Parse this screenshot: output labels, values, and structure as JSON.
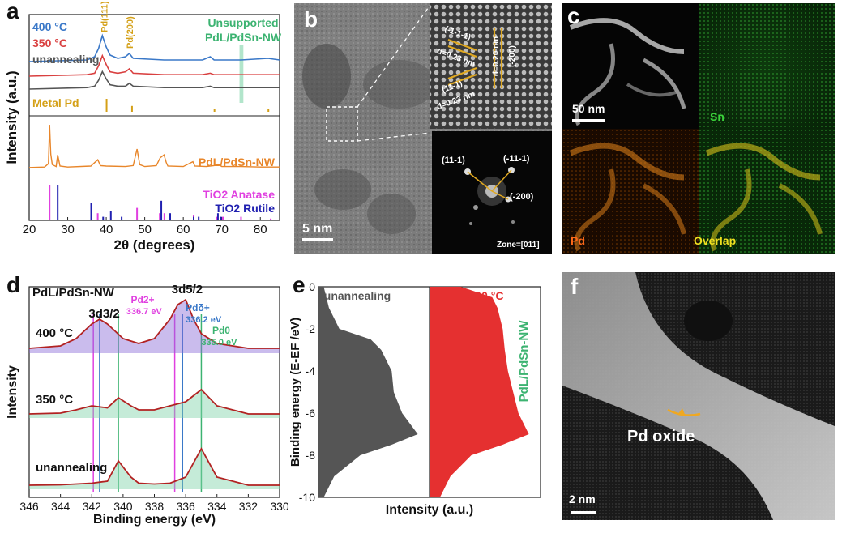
{
  "panels": {
    "a": {
      "label": "a"
    },
    "b": {
      "label": "b",
      "scale": "5 nm",
      "lattice": [
        "(-1-1-1)",
        "d=0.23 nm",
        "(11-1)",
        "d=0.23 nm",
        "d=0.20 nm",
        "(-200)"
      ],
      "fft": {
        "spots": [
          "(11-1)",
          "(-11-1)",
          "(-200)"
        ],
        "zone": "Zone=[011]"
      }
    },
    "c": {
      "label": "c",
      "scale": "50 nm",
      "maps": [
        "Sn",
        "Pd",
        "Overlap"
      ]
    },
    "d": {
      "label": "d"
    },
    "e": {
      "label": "e"
    },
    "f": {
      "label": "f",
      "annotation": "Pd oxide",
      "scale": "2 nm"
    }
  },
  "colors": {
    "gold": "#d4a017",
    "green": "#3cb371",
    "red": "#d94040",
    "blue": "#3a78c8",
    "magenta": "#e040e0",
    "navy": "#2020b0",
    "orange": "#e8862a",
    "gray": "#555555"
  },
  "chart_data": [
    {
      "type": "line",
      "panel": "a",
      "xlabel": "2θ (degrees)",
      "ylabel": "Intensity (a.u.)",
      "xlim": [
        20,
        85
      ],
      "xticks": [
        20,
        30,
        40,
        50,
        60,
        70,
        80
      ],
      "annotations": {
        "pd111": "Pd(111)",
        "pd200": "Pd(200)",
        "unsupported_line1": "Unsupported",
        "unsupported_line2": "PdL/PdSn-NW"
      },
      "series": [
        {
          "name": "400 °C",
          "color": "#3a78c8",
          "x": [
            20,
            35,
            37,
            38,
            39,
            40,
            41,
            43,
            45,
            46,
            47,
            55,
            65,
            67,
            68,
            75,
            82,
            85
          ],
          "y": [
            0,
            1,
            3,
            8,
            16,
            9,
            4,
            2,
            3,
            5,
            2,
            1,
            1,
            3,
            1,
            1,
            2,
            1
          ]
        },
        {
          "name": "350 °C",
          "color": "#d94040",
          "x": [
            20,
            35,
            37,
            38,
            39,
            40,
            41,
            43,
            45,
            46,
            47,
            55,
            65,
            67,
            68,
            75,
            82,
            85
          ],
          "y": [
            0,
            1,
            2,
            7,
            14,
            8,
            3,
            2,
            3,
            5,
            2,
            1,
            1,
            2,
            1,
            1,
            1,
            1
          ]
        },
        {
          "name": "unannealing",
          "color": "#555555",
          "x": [
            20,
            35,
            37,
            38,
            39,
            40,
            41,
            43,
            45,
            46,
            47,
            55,
            65,
            67,
            68,
            75,
            82,
            85
          ],
          "y": [
            0,
            1,
            2,
            6,
            12,
            7,
            3,
            2,
            2,
            4,
            2,
            1,
            1,
            2,
            1,
            1,
            1,
            1
          ]
        },
        {
          "name": "Metal Pd",
          "color": "#d4a017",
          "sticks": [
            40.1,
            46.7,
            68.1,
            82.1
          ],
          "heights": [
            1.0,
            0.45,
            0.25,
            0.25
          ]
        },
        {
          "name": "PdL/PdSn-NW",
          "color": "#e8862a",
          "x": [
            20,
            24,
            25,
            25.3,
            25.6,
            26,
            27,
            27.4,
            28,
            30,
            36,
            37.8,
            38.5,
            40,
            45,
            47,
            48,
            48.7,
            50,
            53,
            54,
            55,
            55.6,
            56,
            60,
            62.5,
            63,
            66,
            68,
            69,
            70,
            75,
            80,
            85
          ],
          "y": [
            2,
            3,
            10,
            90,
            30,
            8,
            4,
            28,
            5,
            3,
            5,
            18,
            6,
            5,
            4,
            6,
            40,
            8,
            4,
            6,
            22,
            28,
            12,
            5,
            4,
            14,
            5,
            4,
            6,
            9,
            4,
            4,
            3,
            3
          ]
        },
        {
          "name": "TiO2 Anatase",
          "color": "#e040e0",
          "sticks": [
            25.3,
            37.8,
            48.0,
            53.9,
            55.1,
            62.7,
            68.8,
            70.3,
            75.0,
            82.7
          ],
          "heights": [
            1.0,
            0.2,
            0.35,
            0.2,
            0.2,
            0.15,
            0.1,
            0.1,
            0.1,
            0.05
          ]
        },
        {
          "name": "TiO2 Rutile",
          "color": "#2020b0",
          "sticks": [
            27.4,
            36.1,
            39.2,
            41.2,
            44.0,
            54.3,
            56.6,
            62.7,
            64.0,
            69.0,
            69.8
          ],
          "heights": [
            1.0,
            0.5,
            0.1,
            0.25,
            0.1,
            0.55,
            0.2,
            0.1,
            0.1,
            0.2,
            0.1
          ]
        }
      ]
    },
    {
      "type": "line",
      "panel": "d",
      "title": "PdL/PdSn-NW",
      "xlabel": "Binding energy (eV)",
      "ylabel": "Intensity",
      "xlim": [
        346,
        330
      ],
      "xticks": [
        346,
        344,
        342,
        340,
        338,
        336,
        334,
        332,
        330
      ],
      "annotations": {
        "d32": "3d3/2",
        "d52": "3d5/2",
        "pd2": "Pd2+",
        "pd2_val": "336.7 eV",
        "pdd": "Pdδ+",
        "pdd_val": "336.2 eV",
        "pd0": "Pd0",
        "pd0_val": "335.0 eV"
      },
      "reference_lines": [
        {
          "x": 341.9,
          "color": "#e040e0"
        },
        {
          "x": 341.5,
          "color": "#3a78c8"
        },
        {
          "x": 340.3,
          "color": "#3cb371"
        },
        {
          "x": 336.7,
          "color": "#e040e0"
        },
        {
          "x": 336.2,
          "color": "#3a78c8"
        },
        {
          "x": 335.0,
          "color": "#3cb371"
        }
      ],
      "series": [
        {
          "name": "400 °C",
          "x": [
            346,
            344,
            343,
            342,
            341.5,
            341,
            340,
            339,
            338,
            337,
            336.5,
            336,
            335.5,
            335,
            334,
            332,
            330
          ],
          "y": [
            1,
            1.5,
            3,
            6,
            7,
            6,
            3,
            2,
            3,
            7,
            10,
            11,
            7,
            4,
            2,
            1,
            1
          ]
        },
        {
          "name": "350 °C",
          "x": [
            346,
            344,
            343,
            342,
            341,
            340.3,
            339.5,
            339,
            338,
            337,
            336,
            335,
            334,
            332,
            330
          ],
          "y": [
            1,
            1.2,
            2,
            3,
            2.5,
            5,
            3,
            2,
            2,
            3,
            4,
            7,
            3,
            1,
            1
          ]
        },
        {
          "name": "unannealing",
          "x": [
            346,
            344,
            343,
            342,
            341,
            340.3,
            339.5,
            339,
            338,
            337,
            336,
            335,
            334,
            332,
            330
          ],
          "y": [
            1,
            1.1,
            1.3,
            1.5,
            2,
            7,
            3,
            1.5,
            1.3,
            1.5,
            3,
            10,
            3,
            1,
            1
          ]
        }
      ]
    },
    {
      "type": "area",
      "panel": "e",
      "ylabel": "Binding energy (E-EF /eV)",
      "xlabel": "Intensity (a.u.)",
      "ylim": [
        -10,
        0
      ],
      "yticks": [
        0,
        -2,
        -4,
        -6,
        -8,
        -10
      ],
      "series": [
        {
          "name": "unannealing",
          "color": "#555555",
          "y": [
            0,
            -1,
            -2,
            -2.5,
            -3,
            -4,
            -5,
            -6,
            -7,
            -7.5,
            -8,
            -9,
            -10
          ],
          "intensity": [
            0.05,
            0.1,
            0.2,
            0.5,
            0.6,
            0.7,
            0.72,
            0.8,
            0.95,
            0.7,
            0.4,
            0.15,
            0.05
          ]
        },
        {
          "name": "400 °C",
          "color": "#e53030",
          "y": [
            0,
            -0.5,
            -1,
            -2,
            -3,
            -4,
            -5,
            -6,
            -7,
            -7.5,
            -8,
            -9,
            -10
          ],
          "intensity": [
            0.3,
            0.6,
            0.65,
            0.7,
            0.72,
            0.75,
            0.8,
            0.85,
            0.95,
            0.7,
            0.4,
            0.2,
            0.1
          ]
        }
      ]
    }
  ]
}
